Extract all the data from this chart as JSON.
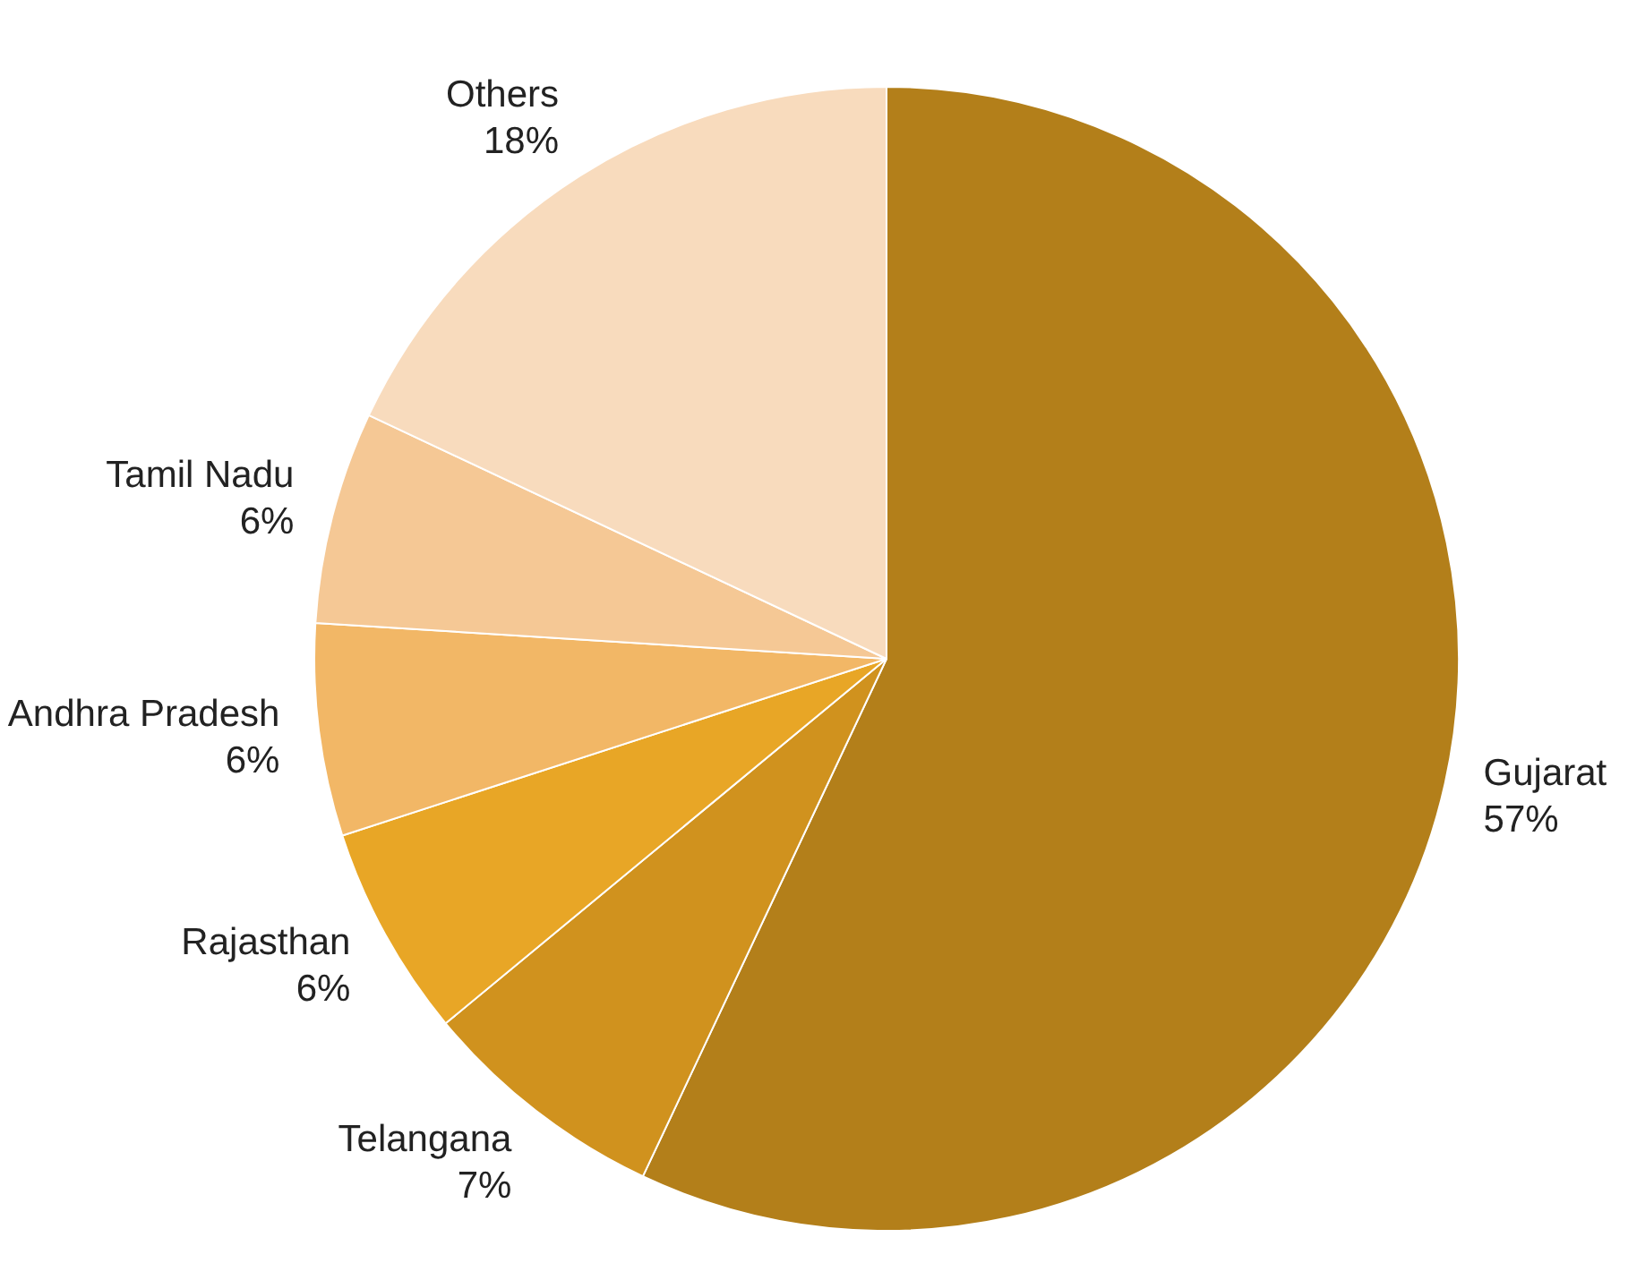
{
  "chart_data": {
    "type": "pie",
    "categories": [
      "Gujarat",
      "Telangana",
      "Rajasthan",
      "Andhra Pradesh",
      "Tamil Nadu",
      "Others"
    ],
    "values": [
      57,
      7,
      6,
      6,
      6,
      18
    ],
    "colors": [
      "#b37f1a",
      "#d0921e",
      "#e8a626",
      "#f2b766",
      "#f5c895",
      "#f8dbbd"
    ],
    "value_labels": [
      "57%",
      "7%",
      "6%",
      "6%",
      "6%",
      "18%"
    ],
    "legend": false
  }
}
